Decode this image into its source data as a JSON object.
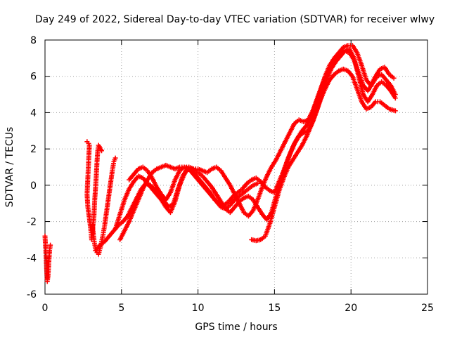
{
  "chart_data": {
    "type": "scatter",
    "title": "Day 249 of 2022, Sidereal Day-to-day VTEC variation (SDTVAR) for receiver wlwy",
    "xlabel": "GPS time / hours",
    "ylabel": "SDTVAR / TECUs",
    "xlim": [
      0,
      25
    ],
    "ylim": [
      -6,
      8
    ],
    "x_ticks": [
      "0",
      "5",
      "10",
      "15",
      "20",
      "25"
    ],
    "y_ticks": [
      "-6",
      "-4",
      "-2",
      "0",
      "2",
      "4",
      "6"
    ],
    "y_ticks_top": "8",
    "grid": true,
    "marker": "plus",
    "color": "#ff0000",
    "series": [
      {
        "points": [
          [
            0.0,
            -2.8
          ],
          [
            0.05,
            -3.5
          ],
          [
            0.1,
            -4.5
          ],
          [
            0.15,
            -5.3
          ],
          [
            0.2,
            -5.0
          ],
          [
            0.25,
            -4.2
          ],
          [
            0.3,
            -3.6
          ],
          [
            0.35,
            -3.3
          ]
        ]
      },
      {
        "points": [
          [
            2.75,
            2.4
          ],
          [
            2.85,
            2.3
          ],
          [
            2.9,
            2.2
          ],
          [
            2.75,
            -0.5
          ],
          [
            2.8,
            -1.2
          ],
          [
            2.9,
            -1.8
          ],
          [
            3.0,
            -2.5
          ],
          [
            3.05,
            -3.0
          ],
          [
            3.1,
            -2.5
          ],
          [
            3.2,
            -1.7
          ],
          [
            3.25,
            -0.8
          ],
          [
            3.3,
            -0.2
          ],
          [
            3.35,
            0.5
          ],
          [
            3.4,
            1.3
          ],
          [
            3.45,
            1.9
          ],
          [
            3.5,
            2.2
          ],
          [
            3.6,
            2.05
          ],
          [
            3.7,
            1.9
          ]
        ]
      },
      {
        "points": [
          [
            3.1,
            -2.2
          ],
          [
            3.2,
            -3.0
          ],
          [
            3.3,
            -3.5
          ],
          [
            3.4,
            -3.7
          ],
          [
            3.5,
            -3.8
          ],
          [
            3.6,
            -3.5
          ],
          [
            3.7,
            -3.1
          ],
          [
            3.8,
            -2.7
          ],
          [
            3.9,
            -2.2
          ],
          [
            4.0,
            -1.6
          ],
          [
            4.1,
            -1.0
          ],
          [
            4.2,
            -0.4
          ],
          [
            4.3,
            0.2
          ],
          [
            4.4,
            0.8
          ],
          [
            4.5,
            1.3
          ],
          [
            4.6,
            1.5
          ]
        ]
      },
      {
        "points": [
          [
            3.3,
            -3.6
          ],
          [
            3.6,
            -3.3
          ],
          [
            3.9,
            -3.1
          ],
          [
            4.2,
            -2.8
          ],
          [
            4.5,
            -2.5
          ],
          [
            4.8,
            -2.2
          ],
          [
            5.1,
            -2.0
          ],
          [
            5.4,
            -1.7
          ],
          [
            5.7,
            -1.2
          ],
          [
            6.0,
            -0.7
          ],
          [
            6.3,
            -0.2
          ],
          [
            6.6,
            0.1
          ],
          [
            6.9,
            0.0
          ],
          [
            7.2,
            -0.3
          ],
          [
            7.5,
            -0.6
          ],
          [
            7.8,
            -0.9
          ],
          [
            8.1,
            -1.2
          ],
          [
            8.4,
            -1.0
          ],
          [
            8.7,
            -0.2
          ],
          [
            9.0,
            0.5
          ],
          [
            9.3,
            0.9
          ],
          [
            9.6,
            0.8
          ],
          [
            9.9,
            0.5
          ],
          [
            10.2,
            0.2
          ],
          [
            10.5,
            -0.1
          ],
          [
            10.8,
            -0.4
          ],
          [
            11.1,
            -0.8
          ],
          [
            11.4,
            -1.0
          ],
          [
            11.7,
            -1.1
          ],
          [
            12.0,
            -0.9
          ],
          [
            12.3,
            -0.6
          ],
          [
            12.6,
            -0.4
          ],
          [
            12.9,
            -0.2
          ],
          [
            13.2,
            0.1
          ],
          [
            13.5,
            0.3
          ],
          [
            13.8,
            0.4
          ],
          [
            14.1,
            0.2
          ],
          [
            14.4,
            -0.1
          ],
          [
            14.7,
            -0.3
          ],
          [
            15.0,
            -0.4
          ],
          [
            15.3,
            0.2
          ],
          [
            15.6,
            0.8
          ],
          [
            15.9,
            1.5
          ],
          [
            16.2,
            2.1
          ],
          [
            16.5,
            2.6
          ],
          [
            16.8,
            3.0
          ],
          [
            17.1,
            3.3
          ],
          [
            17.4,
            3.8
          ],
          [
            17.7,
            4.5
          ],
          [
            18.0,
            5.2
          ],
          [
            18.3,
            6.0
          ],
          [
            18.6,
            6.6
          ],
          [
            18.9,
            7.0
          ],
          [
            19.2,
            7.3
          ],
          [
            19.5,
            7.6
          ],
          [
            19.8,
            7.7
          ],
          [
            20.1,
            7.7
          ],
          [
            20.4,
            7.3
          ],
          [
            20.7,
            6.6
          ],
          [
            21.0,
            5.8
          ],
          [
            21.3,
            5.5
          ],
          [
            21.6,
            6.0
          ],
          [
            21.9,
            6.4
          ],
          [
            22.2,
            6.5
          ],
          [
            22.5,
            6.1
          ],
          [
            22.8,
            5.9
          ]
        ]
      },
      {
        "points": [
          [
            4.6,
            -2.4
          ],
          [
            4.9,
            -1.6
          ],
          [
            5.2,
            -0.8
          ],
          [
            5.5,
            -0.2
          ],
          [
            5.8,
            0.2
          ],
          [
            6.1,
            0.5
          ],
          [
            6.4,
            0.4
          ],
          [
            6.7,
            0.1
          ],
          [
            7.0,
            -0.2
          ],
          [
            7.3,
            -0.5
          ],
          [
            7.6,
            -0.8
          ],
          [
            7.9,
            -1.2
          ],
          [
            8.2,
            -1.5
          ],
          [
            8.5,
            -0.9
          ],
          [
            8.8,
            0.0
          ],
          [
            9.1,
            0.6
          ],
          [
            9.4,
            1.0
          ],
          [
            9.7,
            0.9
          ],
          [
            10.0,
            0.7
          ],
          [
            10.3,
            0.5
          ],
          [
            10.6,
            0.2
          ],
          [
            10.9,
            -0.1
          ],
          [
            11.2,
            -0.5
          ],
          [
            11.5,
            -0.9
          ],
          [
            11.8,
            -1.3
          ],
          [
            12.1,
            -1.5
          ],
          [
            12.4,
            -1.2
          ],
          [
            12.7,
            -0.9
          ],
          [
            13.0,
            -0.7
          ],
          [
            13.3,
            -0.6
          ],
          [
            13.6,
            -0.8
          ],
          [
            13.9,
            -1.2
          ],
          [
            14.2,
            -1.6
          ],
          [
            14.5,
            -1.9
          ],
          [
            14.8,
            -1.5
          ],
          [
            15.1,
            -0.6
          ],
          [
            15.4,
            0.2
          ],
          [
            15.7,
            1.0
          ],
          [
            16.0,
            1.7
          ],
          [
            16.3,
            2.3
          ],
          [
            16.6,
            2.7
          ],
          [
            16.9,
            2.9
          ],
          [
            17.2,
            3.0
          ],
          [
            17.5,
            3.5
          ],
          [
            17.8,
            4.2
          ],
          [
            18.1,
            5.0
          ],
          [
            18.4,
            5.8
          ],
          [
            18.7,
            6.4
          ],
          [
            19.0,
            6.8
          ],
          [
            19.3,
            7.1
          ],
          [
            19.6,
            7.4
          ],
          [
            19.9,
            7.5
          ],
          [
            20.2,
            7.0
          ],
          [
            20.5,
            6.0
          ],
          [
            20.8,
            5.0
          ],
          [
            21.1,
            4.6
          ],
          [
            21.4,
            5.0
          ],
          [
            21.7,
            5.5
          ],
          [
            22.0,
            5.7
          ],
          [
            22.3,
            5.5
          ],
          [
            22.6,
            5.2
          ],
          [
            22.9,
            4.8
          ]
        ]
      },
      {
        "points": [
          [
            4.9,
            -3.0
          ],
          [
            5.2,
            -2.5
          ],
          [
            5.5,
            -2.0
          ],
          [
            5.8,
            -1.4
          ],
          [
            6.1,
            -0.8
          ],
          [
            6.4,
            -0.2
          ],
          [
            6.7,
            0.3
          ],
          [
            7.0,
            0.7
          ],
          [
            7.3,
            0.9
          ],
          [
            7.6,
            1.0
          ],
          [
            7.9,
            1.1
          ],
          [
            8.2,
            1.0
          ],
          [
            8.5,
            0.9
          ],
          [
            8.8,
            1.0
          ],
          [
            9.1,
            1.0
          ],
          [
            9.4,
            1.0
          ],
          [
            9.7,
            0.9
          ],
          [
            10.0,
            0.9
          ],
          [
            10.3,
            0.8
          ],
          [
            10.6,
            0.7
          ],
          [
            10.9,
            0.9
          ],
          [
            11.2,
            1.0
          ],
          [
            11.5,
            0.8
          ],
          [
            11.8,
            0.4
          ],
          [
            12.1,
            0.0
          ],
          [
            12.4,
            -0.5
          ],
          [
            12.7,
            -1.0
          ],
          [
            13.0,
            -1.5
          ],
          [
            13.3,
            -1.7
          ],
          [
            13.6,
            -1.4
          ],
          [
            13.9,
            -0.8
          ],
          [
            14.2,
            -0.1
          ],
          [
            14.5,
            0.5
          ],
          [
            14.8,
            1.0
          ],
          [
            15.1,
            1.4
          ],
          [
            15.4,
            1.9
          ],
          [
            15.7,
            2.4
          ],
          [
            16.0,
            2.9
          ],
          [
            16.3,
            3.4
          ],
          [
            16.6,
            3.6
          ],
          [
            16.9,
            3.5
          ],
          [
            17.2,
            3.6
          ],
          [
            17.5,
            4.1
          ],
          [
            17.8,
            4.8
          ],
          [
            18.1,
            5.5
          ],
          [
            18.4,
            6.1
          ],
          [
            18.7,
            6.6
          ],
          [
            19.0,
            6.9
          ],
          [
            19.3,
            7.2
          ],
          [
            19.6,
            7.4
          ],
          [
            19.9,
            7.3
          ],
          [
            20.2,
            6.9
          ],
          [
            20.5,
            6.2
          ],
          [
            20.8,
            5.5
          ],
          [
            21.1,
            5.2
          ],
          [
            21.4,
            5.6
          ],
          [
            21.7,
            6.0
          ],
          [
            22.0,
            6.1
          ],
          [
            22.3,
            5.8
          ],
          [
            22.6,
            5.5
          ],
          [
            22.9,
            5.0
          ]
        ]
      },
      {
        "points": [
          [
            13.5,
            -3.0
          ],
          [
            13.8,
            -3.05
          ],
          [
            14.1,
            -3.0
          ],
          [
            14.4,
            -2.8
          ],
          [
            14.7,
            -2.1
          ],
          [
            15.0,
            -1.2
          ],
          [
            15.3,
            -0.3
          ],
          [
            15.6,
            0.4
          ],
          [
            15.9,
            1.0
          ],
          [
            16.2,
            1.4
          ],
          [
            16.5,
            1.8
          ],
          [
            16.8,
            2.2
          ],
          [
            17.1,
            2.7
          ],
          [
            17.4,
            3.3
          ],
          [
            17.7,
            4.0
          ],
          [
            18.0,
            4.7
          ],
          [
            18.3,
            5.3
          ],
          [
            18.6,
            5.8
          ],
          [
            18.9,
            6.1
          ],
          [
            19.2,
            6.3
          ],
          [
            19.5,
            6.4
          ],
          [
            19.8,
            6.3
          ],
          [
            20.1,
            6.0
          ],
          [
            20.4,
            5.3
          ],
          [
            20.7,
            4.6
          ],
          [
            21.0,
            4.2
          ],
          [
            21.3,
            4.3
          ],
          [
            21.6,
            4.6
          ],
          [
            21.9,
            4.6
          ],
          [
            22.2,
            4.4
          ],
          [
            22.5,
            4.2
          ],
          [
            22.9,
            4.1
          ]
        ]
      },
      {
        "points": [
          [
            5.5,
            0.3
          ],
          [
            5.8,
            0.6
          ],
          [
            6.1,
            0.9
          ],
          [
            6.4,
            1.0
          ],
          [
            6.7,
            0.8
          ],
          [
            7.0,
            0.4
          ],
          [
            7.3,
            -0.1
          ],
          [
            7.6,
            -0.5
          ],
          [
            7.9,
            -0.8
          ],
          [
            8.2,
            -0.4
          ],
          [
            8.5,
            0.3
          ],
          [
            8.8,
            0.8
          ],
          [
            9.1,
            1.0
          ],
          [
            9.4,
            0.9
          ],
          [
            9.7,
            0.6
          ],
          [
            10.0,
            0.3
          ],
          [
            10.3,
            0.0
          ],
          [
            10.6,
            -0.3
          ],
          [
            10.9,
            -0.6
          ],
          [
            11.2,
            -0.9
          ],
          [
            11.5,
            -1.2
          ],
          [
            11.8,
            -1.3
          ],
          [
            12.1,
            -1.1
          ],
          [
            12.4,
            -0.8
          ],
          [
            12.7,
            -0.6
          ],
          [
            13.0,
            -0.4
          ],
          [
            13.3,
            -0.2
          ],
          [
            13.6,
            0.0
          ],
          [
            13.9,
            0.1
          ]
        ]
      }
    ]
  }
}
